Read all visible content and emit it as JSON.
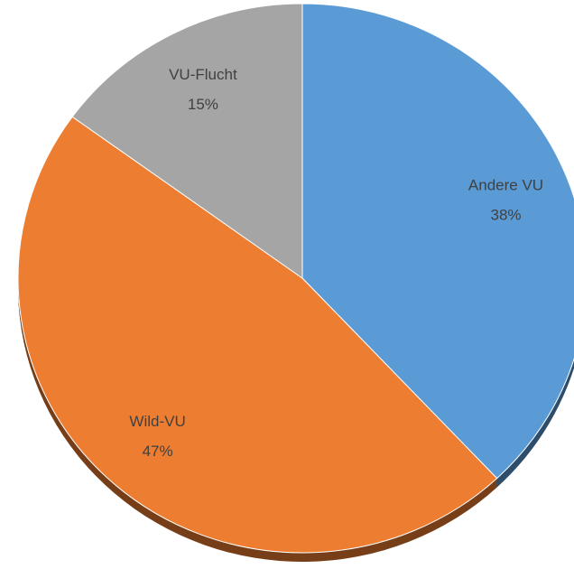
{
  "chart_data": {
    "type": "pie",
    "categories": [
      "Andere VU",
      "Wild-VU",
      "VU-Flucht"
    ],
    "values": [
      38,
      47,
      15
    ],
    "value_labels": [
      "38%",
      "47%",
      "15%"
    ],
    "colors": [
      "#5b9bd5",
      "#ed7d31",
      "#a5a5a5"
    ]
  }
}
